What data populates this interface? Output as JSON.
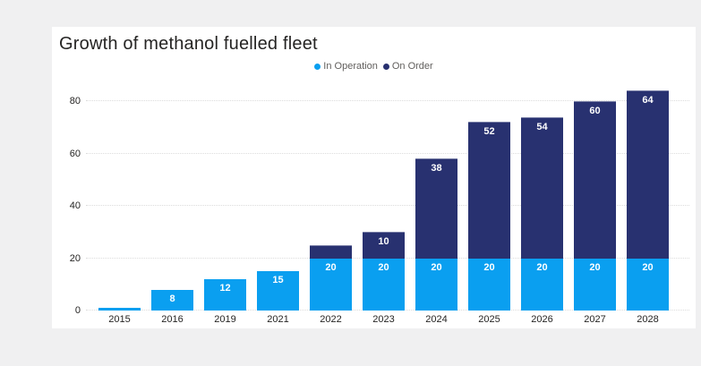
{
  "title": "Growth of methanol fuelled fleet",
  "legend": [
    {
      "label": "In Operation",
      "color": "#0a9ff0"
    },
    {
      "label": "On Order",
      "color": "#283170"
    }
  ],
  "chart_data": {
    "type": "bar",
    "stacked": true,
    "title": "Growth of methanol fuelled fleet",
    "categories": [
      "2015",
      "2016",
      "2019",
      "2021",
      "2022",
      "2023",
      "2024",
      "2025",
      "2026",
      "2027",
      "2028"
    ],
    "series": [
      {
        "name": "In Operation",
        "color": "#0a9ff0",
        "values": [
          1,
          8,
          12,
          15,
          20,
          20,
          20,
          20,
          20,
          20,
          20
        ],
        "labels": [
          "",
          "8",
          "12",
          "15",
          "20",
          "20",
          "20",
          "20",
          "20",
          "20",
          "20"
        ]
      },
      {
        "name": "On Order",
        "color": "#283170",
        "values": [
          0,
          0,
          0,
          0,
          5,
          10,
          38,
          52,
          54,
          60,
          64
        ],
        "labels": [
          "",
          "",
          "",
          "",
          "",
          "10",
          "38",
          "52",
          "54",
          "60",
          "64"
        ]
      }
    ],
    "yticks": [
      0,
      20,
      40,
      60,
      80
    ],
    "ylim": [
      0,
      88
    ],
    "xlabel": "",
    "ylabel": "",
    "grid": "dotted-horizontal",
    "legend_position": "top-center"
  },
  "colors": {
    "background": "#f0f0f1",
    "card": "#ffffff",
    "title_text": "#252423",
    "axis_text": "#252423",
    "legend_text": "#605e5c",
    "gridline": "#dcdcdc",
    "bar_label_text": "#ffffff"
  }
}
